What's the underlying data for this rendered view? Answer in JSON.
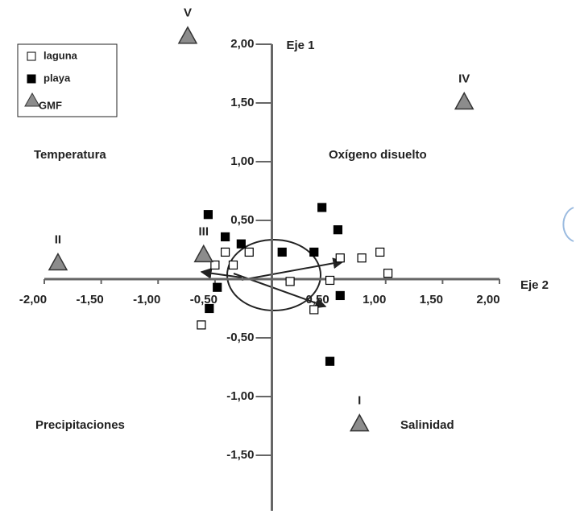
{
  "chart_data": {
    "type": "scatter",
    "xlabel": "Eje 2",
    "ylabel": "Eje 1",
    "annotations": [
      "Temperatura",
      "Oxígeno disuelto",
      "Precipitaciones",
      "Salinidad"
    ],
    "xlim": [
      -2,
      2
    ],
    "ylim": [
      -2,
      2
    ],
    "xticks": [
      {
        "value": -2,
        "label": "-2,00"
      },
      {
        "value": -1.5,
        "label": "-1,50"
      },
      {
        "value": -1,
        "label": "-1,00"
      },
      {
        "value": -0.5,
        "label": "-0,50"
      },
      {
        "value": 0.5,
        "label": "0,50"
      },
      {
        "value": 1,
        "label": "1,00"
      },
      {
        "value": 1.5,
        "label": "1,50"
      },
      {
        "value": 2,
        "label": "2,00"
      }
    ],
    "yticks": [
      {
        "value": 2,
        "label": "2,00"
      },
      {
        "value": 1.5,
        "label": "1,50"
      },
      {
        "value": 1,
        "label": "1,00"
      },
      {
        "value": 0.5,
        "label": "0,50"
      },
      {
        "value": -0.5,
        "label": "-0,50"
      },
      {
        "value": -1,
        "label": "-1,00"
      },
      {
        "value": -1.5,
        "label": "-1,50"
      }
    ],
    "legend": "upper left",
    "series": [
      {
        "name": "laguna",
        "marker": "open-square",
        "color": "#000000",
        "x": [
          -0.62,
          -0.5,
          -0.41,
          -0.34,
          -0.2,
          0.16,
          0.37,
          0.51,
          0.6,
          0.79,
          0.95,
          1.02
        ],
        "y": [
          -0.39,
          0.12,
          0.23,
          0.12,
          0.23,
          -0.02,
          -0.26,
          -0.01,
          0.18,
          0.18,
          0.23,
          0.05
        ]
      },
      {
        "name": "playa",
        "marker": "filled-square",
        "color": "#000000",
        "x": [
          -0.56,
          -0.41,
          -0.27,
          0.09,
          0.37,
          0.44,
          0.58,
          -0.48,
          -0.55,
          0.6,
          0.51
        ],
        "y": [
          0.55,
          0.36,
          0.3,
          0.23,
          0.23,
          0.61,
          0.42,
          -0.07,
          -0.25,
          -0.14,
          -0.7
        ]
      },
      {
        "name": "GMF",
        "marker": "triangle",
        "color": "#8c8c8c",
        "x": [
          -0.74,
          1.69,
          -1.88,
          -0.6,
          0.77
        ],
        "y": [
          2.07,
          1.51,
          0.14,
          0.21,
          -1.23
        ],
        "labels": [
          "V",
          "IV",
          "II",
          "III",
          "I"
        ]
      }
    ]
  }
}
